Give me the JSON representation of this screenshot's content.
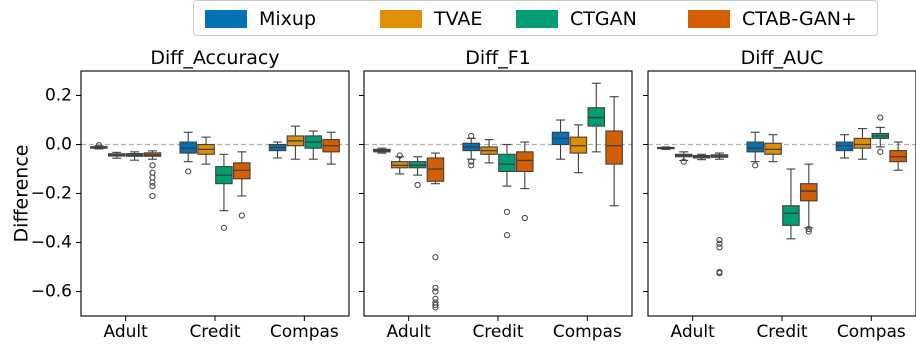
{
  "chart_data": {
    "type": "box",
    "ylabel": "Difference",
    "categories": [
      "Adult",
      "Credit",
      "Compas"
    ],
    "ylim": [
      -0.7,
      0.3
    ],
    "yticks": [
      0.2,
      0.0,
      -0.2,
      -0.4,
      -0.6
    ],
    "ytick_labels": [
      "0.2",
      "0.0",
      "−0.2",
      "−0.4",
      "−0.6"
    ],
    "reference_line": 0.0,
    "legend_position": "top-center",
    "series": [
      {
        "name": "Mixup",
        "color": "#0173b2"
      },
      {
        "name": "TVAE",
        "color": "#de8f05"
      },
      {
        "name": "CTGAN",
        "color": "#029e73"
      },
      {
        "name": "CTAB-GAN+",
        "color": "#d55e00"
      }
    ],
    "panels": [
      {
        "title": "Diff_Accuracy",
        "boxes": {
          "Adult": [
            {
              "q1": -0.015,
              "median": -0.012,
              "q3": -0.009,
              "low": -0.018,
              "high": -0.005,
              "outliers": [
                -0.003
              ]
            },
            {
              "q1": -0.047,
              "median": -0.043,
              "q3": -0.038,
              "low": -0.056,
              "high": -0.032,
              "outliers": []
            },
            {
              "q1": -0.048,
              "median": -0.043,
              "q3": -0.037,
              "low": -0.064,
              "high": -0.03,
              "outliers": []
            },
            {
              "q1": -0.048,
              "median": -0.042,
              "q3": -0.034,
              "low": -0.06,
              "high": -0.026,
              "outliers": [
                -0.085,
                -0.115,
                -0.135,
                -0.155,
                -0.17,
                -0.21
              ]
            }
          ],
          "Credit": [
            {
              "q1": -0.035,
              "median": -0.015,
              "q3": 0.01,
              "low": -0.07,
              "high": 0.05,
              "outliers": [
                -0.11
              ]
            },
            {
              "q1": -0.04,
              "median": -0.02,
              "q3": 0.0,
              "low": -0.08,
              "high": 0.03,
              "outliers": []
            },
            {
              "q1": -0.16,
              "median": -0.125,
              "q3": -0.09,
              "low": -0.27,
              "high": -0.04,
              "outliers": [
                -0.34
              ]
            },
            {
              "q1": -0.14,
              "median": -0.105,
              "q3": -0.075,
              "low": -0.21,
              "high": -0.03,
              "outliers": [
                -0.29
              ]
            }
          ],
          "Compas": [
            {
              "q1": -0.025,
              "median": -0.012,
              "q3": 0.0,
              "low": -0.055,
              "high": 0.01,
              "outliers": []
            },
            {
              "q1": -0.005,
              "median": 0.015,
              "q3": 0.035,
              "low": -0.06,
              "high": 0.075,
              "outliers": []
            },
            {
              "q1": -0.015,
              "median": 0.01,
              "q3": 0.035,
              "low": -0.06,
              "high": 0.055,
              "outliers": []
            },
            {
              "q1": -0.03,
              "median": -0.005,
              "q3": 0.02,
              "low": -0.08,
              "high": 0.05,
              "outliers": []
            }
          ]
        }
      },
      {
        "title": "Diff_F1",
        "boxes": {
          "Adult": [
            {
              "q1": -0.03,
              "median": -0.025,
              "q3": -0.02,
              "low": -0.035,
              "high": -0.015,
              "outliers": []
            },
            {
              "q1": -0.095,
              "median": -0.085,
              "q3": -0.07,
              "low": -0.12,
              "high": -0.05,
              "outliers": [
                -0.045
              ]
            },
            {
              "q1": -0.095,
              "median": -0.085,
              "q3": -0.07,
              "low": -0.125,
              "high": -0.05,
              "outliers": [
                -0.165
              ]
            },
            {
              "q1": -0.15,
              "median": -0.1,
              "q3": -0.055,
              "low": -0.16,
              "high": -0.035,
              "outliers": [
                -0.46,
                -0.585,
                -0.6,
                -0.63,
                -0.645,
                -0.655,
                -0.665
              ]
            }
          ],
          "Credit": [
            {
              "q1": -0.025,
              "median": -0.01,
              "q3": 0.005,
              "low": -0.06,
              "high": 0.025,
              "outliers": [
                0.035,
                -0.07,
                -0.085
              ]
            },
            {
              "q1": -0.04,
              "median": -0.025,
              "q3": -0.01,
              "low": -0.075,
              "high": 0.02,
              "outliers": []
            },
            {
              "q1": -0.11,
              "median": -0.08,
              "q3": -0.04,
              "low": -0.17,
              "high": 0.0,
              "outliers": [
                -0.275,
                -0.37
              ]
            },
            {
              "q1": -0.11,
              "median": -0.065,
              "q3": -0.03,
              "low": -0.18,
              "high": 0.01,
              "outliers": [
                -0.3
              ]
            }
          ],
          "Compas": [
            {
              "q1": 0.0,
              "median": 0.025,
              "q3": 0.05,
              "low": -0.06,
              "high": 0.1,
              "outliers": []
            },
            {
              "q1": -0.035,
              "median": -0.005,
              "q3": 0.03,
              "low": -0.115,
              "high": 0.08,
              "outliers": []
            },
            {
              "q1": 0.075,
              "median": 0.11,
              "q3": 0.15,
              "low": -0.03,
              "high": 0.25,
              "outliers": []
            },
            {
              "q1": -0.08,
              "median": -0.005,
              "q3": 0.055,
              "low": -0.25,
              "high": 0.195,
              "outliers": []
            }
          ]
        }
      },
      {
        "title": "Diff_AUC",
        "boxes": {
          "Adult": [
            {
              "q1": -0.017,
              "median": -0.015,
              "q3": -0.012,
              "low": -0.02,
              "high": -0.01,
              "outliers": []
            },
            {
              "q1": -0.05,
              "median": -0.045,
              "q3": -0.04,
              "low": -0.065,
              "high": -0.03,
              "outliers": [
                -0.07
              ]
            },
            {
              "q1": -0.055,
              "median": -0.05,
              "q3": -0.045,
              "low": -0.062,
              "high": -0.04,
              "outliers": []
            },
            {
              "q1": -0.052,
              "median": -0.047,
              "q3": -0.042,
              "low": -0.06,
              "high": -0.035,
              "outliers": [
                -0.39,
                -0.405,
                -0.42,
                -0.52,
                -0.525
              ]
            }
          ],
          "Credit": [
            {
              "q1": -0.03,
              "median": -0.015,
              "q3": 0.01,
              "low": -0.07,
              "high": 0.05,
              "outliers": [
                -0.085
              ]
            },
            {
              "q1": -0.04,
              "median": -0.02,
              "q3": 0.005,
              "low": -0.07,
              "high": 0.04,
              "outliers": []
            },
            {
              "q1": -0.33,
              "median": -0.28,
              "q3": -0.25,
              "low": -0.385,
              "high": -0.1,
              "outliers": []
            },
            {
              "q1": -0.23,
              "median": -0.19,
              "q3": -0.16,
              "low": -0.34,
              "high": -0.08,
              "outliers": [
                -0.345,
                -0.355
              ]
            }
          ],
          "Compas": [
            {
              "q1": -0.025,
              "median": -0.005,
              "q3": 0.01,
              "low": -0.055,
              "high": 0.04,
              "outliers": []
            },
            {
              "q1": -0.015,
              "median": 0.0,
              "q3": 0.025,
              "low": -0.06,
              "high": 0.065,
              "outliers": []
            },
            {
              "q1": 0.025,
              "median": 0.035,
              "q3": 0.045,
              "low": -0.01,
              "high": 0.07,
              "outliers": [
                0.11,
                -0.03
              ]
            },
            {
              "q1": -0.07,
              "median": -0.05,
              "q3": -0.025,
              "low": -0.105,
              "high": 0.01,
              "outliers": []
            }
          ]
        }
      }
    ]
  }
}
